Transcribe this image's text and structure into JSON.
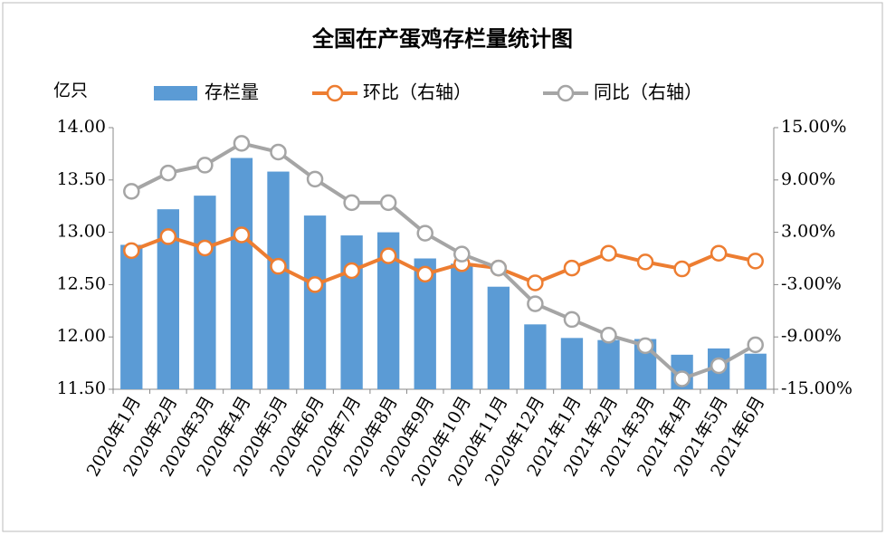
{
  "chart_data": {
    "type": "bar_line",
    "title": "全国在产蛋鸡存栏量统计图",
    "y_label": "亿只",
    "categories": [
      "2020年1月",
      "2020年2月",
      "2020年3月",
      "2020年4月",
      "2020年5月",
      "2020年6月",
      "2020年7月",
      "2020年8月",
      "2020年9月",
      "2020年10月",
      "2020年11月",
      "2020年12月",
      "2021年1月",
      "2021年2月",
      "2021年3月",
      "2021年4月",
      "2021年5月",
      "2021年6月"
    ],
    "series": [
      {
        "name": "存栏量",
        "type": "bar",
        "color": "#5b9bd5",
        "values": [
          12.88,
          13.22,
          13.35,
          13.71,
          13.58,
          13.16,
          12.97,
          13.0,
          12.75,
          12.7,
          12.48,
          12.12,
          11.99,
          11.97,
          11.98,
          11.83,
          11.89,
          11.84
        ]
      },
      {
        "name": "环比（右轴）",
        "type": "line",
        "axis": "y2",
        "color": "#ed7d31",
        "values": [
          0.9,
          2.5,
          1.2,
          2.7,
          -0.9,
          -3.0,
          -1.4,
          0.3,
          -1.8,
          -0.6,
          -1.1,
          -2.8,
          -1.1,
          0.6,
          -0.4,
          -1.2,
          0.6,
          -0.3
        ]
      },
      {
        "name": "同比（右轴）",
        "type": "line",
        "axis": "y2",
        "color": "#a5a5a5",
        "values": [
          7.7,
          9.8,
          10.7,
          13.2,
          12.2,
          9.1,
          6.4,
          6.4,
          2.9,
          0.5,
          -1.1,
          -5.2,
          -7.0,
          -8.8,
          -10.0,
          -13.8,
          -12.3,
          -9.9
        ]
      }
    ],
    "ylim": [
      11.5,
      14.0
    ],
    "yticks": [
      {
        "value": 11.5,
        "label": "11.50"
      },
      {
        "value": 12.0,
        "label": "12.00"
      },
      {
        "value": 12.5,
        "label": "12.50"
      },
      {
        "value": 13.0,
        "label": "13.00"
      },
      {
        "value": 13.5,
        "label": "13.50"
      },
      {
        "value": 14.0,
        "label": "14.00"
      }
    ],
    "y2lim": [
      -15,
      15
    ],
    "y2ticks": [
      {
        "value": -15,
        "label": "-15.00%"
      },
      {
        "value": -9,
        "label": "-9.00%"
      },
      {
        "value": -3,
        "label": "-3.00%"
      },
      {
        "value": 3,
        "label": "3.00%"
      },
      {
        "value": 9,
        "label": "9.00%"
      },
      {
        "value": 15,
        "label": "15.00%"
      }
    ]
  }
}
